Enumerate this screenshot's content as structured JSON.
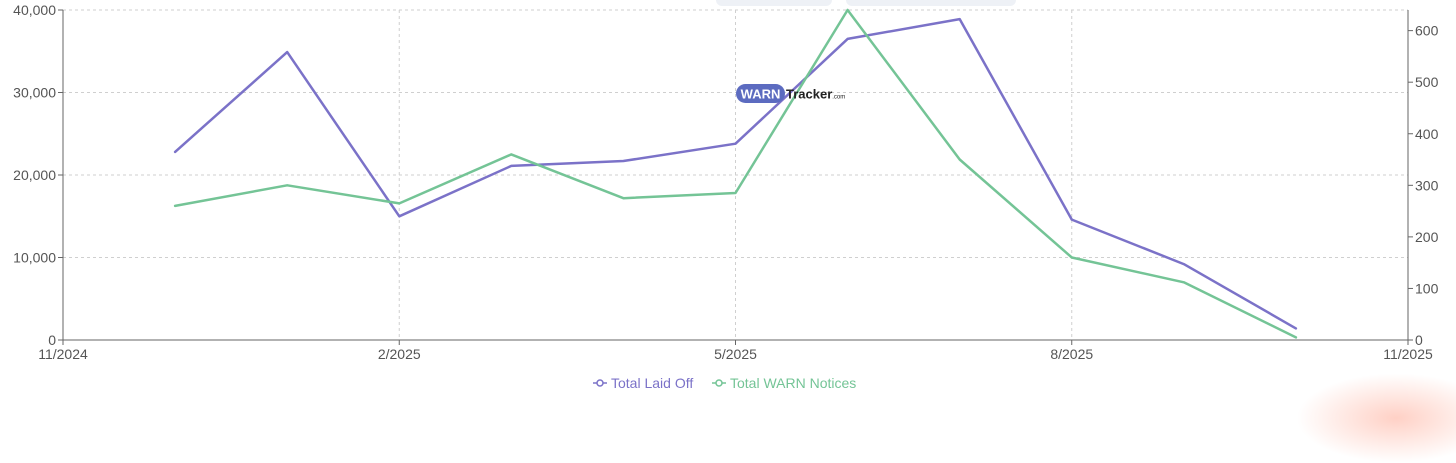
{
  "chart_data": {
    "type": "line",
    "title": "",
    "watermark": {
      "brand_left": "WARN",
      "brand_right": "Tracker",
      "brand_suffix": ".com"
    },
    "x_ticks": [
      "11/2024",
      "2/2025",
      "5/2025",
      "8/2025",
      "11/2025"
    ],
    "x": [
      "12/2024",
      "1/2025",
      "2/2025",
      "3/2025",
      "4/2025",
      "5/2025",
      "6/2025",
      "7/2025",
      "8/2025",
      "9/2025",
      "10/2025"
    ],
    "y_left": {
      "min": 0,
      "max": 40000,
      "ticks": [
        "0",
        "10,000",
        "20,000",
        "30,000",
        "40,000"
      ]
    },
    "y_right": {
      "min": 0,
      "max": 640,
      "ticks": [
        "0",
        "100",
        "200",
        "300",
        "400",
        "500",
        "600"
      ]
    },
    "grid": true,
    "legend_position": "bottom-center",
    "series": [
      {
        "name": "Total Laid Off",
        "axis": "left",
        "color": "#7b72c8",
        "values": [
          22800,
          34900,
          15000,
          21100,
          21700,
          23800,
          36500,
          38900,
          14600,
          9200,
          1400
        ]
      },
      {
        "name": "Total WARN Notices",
        "axis": "right",
        "color": "#74c496",
        "values": [
          260,
          300,
          265,
          360,
          275,
          285,
          640,
          350,
          160,
          112,
          5
        ]
      }
    ]
  }
}
